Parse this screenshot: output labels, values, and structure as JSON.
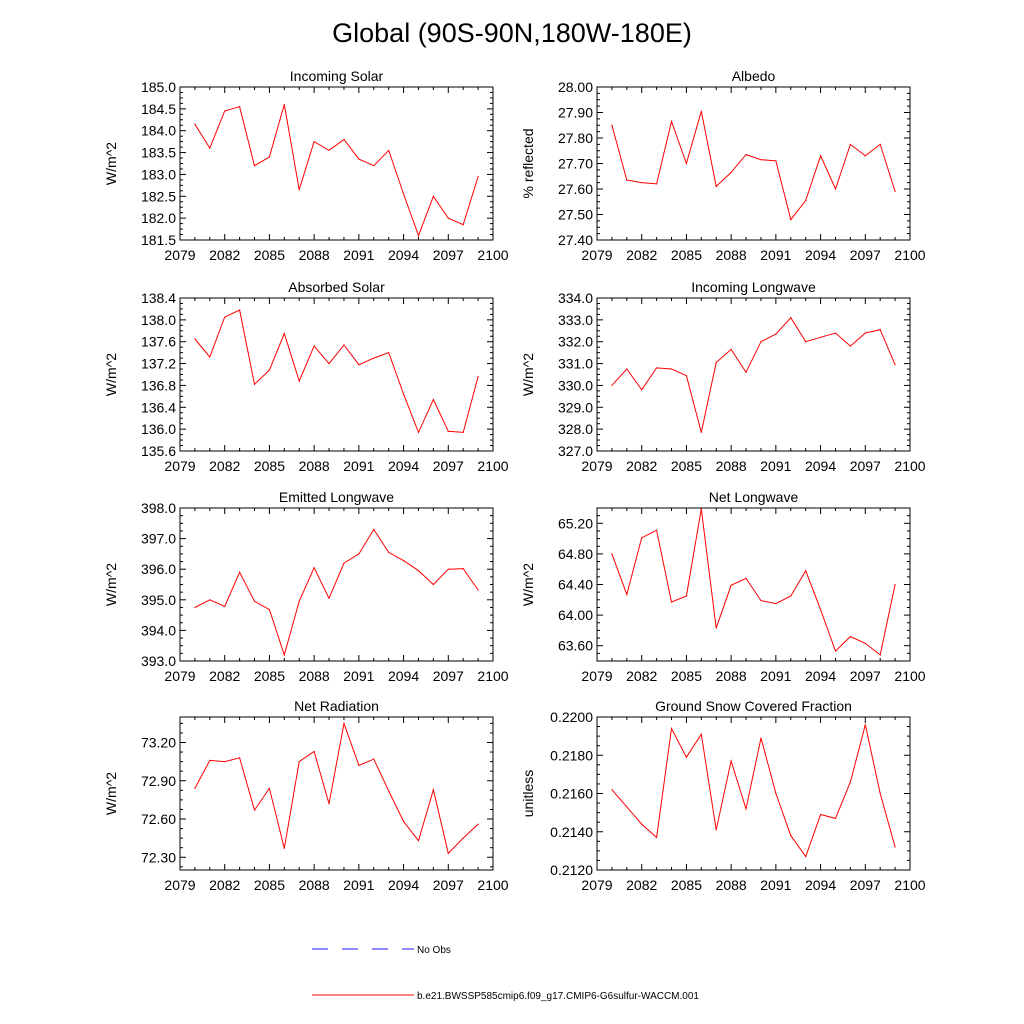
{
  "figure": {
    "title": "Global (90S-90N,180W-180E)"
  },
  "legend": {
    "obs_label": "No Obs",
    "obs_color": "#1a1aff",
    "model_label": "b.e21.BWSSP585cmip6.f09_g17.CMIP6-G6sulfur-WACCM.001",
    "model_color": "#ff0000"
  },
  "chart_data": [
    {
      "type": "line",
      "title": "Incoming Solar",
      "ylabel": "W/m^2",
      "xlim": [
        2079,
        2100
      ],
      "ylim": [
        181.5,
        185.0
      ],
      "xticks": [
        2079,
        2082,
        2085,
        2088,
        2091,
        2094,
        2097,
        2100
      ],
      "yticks": [
        "181.5",
        "182.0",
        "182.5",
        "183.0",
        "183.5",
        "184.0",
        "184.5",
        "185.0"
      ],
      "grid": false,
      "x": [
        2080,
        2081,
        2082,
        2083,
        2084,
        2085,
        2086,
        2087,
        2088,
        2089,
        2090,
        2091,
        2092,
        2093,
        2094,
        2095,
        2096,
        2097,
        2098,
        2099
      ],
      "series": [
        {
          "values": [
            184.15,
            183.6,
            184.45,
            184.55,
            183.2,
            183.4,
            184.6,
            182.65,
            183.75,
            183.55,
            183.8,
            183.35,
            183.2,
            183.55,
            182.55,
            181.6,
            182.5,
            182.0,
            181.85,
            182.95
          ]
        }
      ]
    },
    {
      "type": "line",
      "title": "Albedo",
      "ylabel": "% reflected",
      "xlim": [
        2079,
        2100
      ],
      "ylim": [
        27.4,
        28.0
      ],
      "xticks": [
        2079,
        2082,
        2085,
        2088,
        2091,
        2094,
        2097,
        2100
      ],
      "yticks": [
        "27.40",
        "27.50",
        "27.60",
        "27.70",
        "27.80",
        "27.90",
        "28.00"
      ],
      "grid": false,
      "x": [
        2080,
        2081,
        2082,
        2083,
        2084,
        2085,
        2086,
        2087,
        2088,
        2089,
        2090,
        2091,
        2092,
        2093,
        2094,
        2095,
        2096,
        2097,
        2098,
        2099
      ],
      "series": [
        {
          "values": [
            27.85,
            27.635,
            27.625,
            27.62,
            27.865,
            27.7,
            27.905,
            27.61,
            27.665,
            27.735,
            27.715,
            27.71,
            27.48,
            27.555,
            27.73,
            27.6,
            27.775,
            27.73,
            27.775,
            27.59
          ]
        }
      ]
    },
    {
      "type": "line",
      "title": "Absorbed Solar",
      "ylabel": "W/m^2",
      "xlim": [
        2079,
        2100
      ],
      "ylim": [
        135.6,
        138.4
      ],
      "xticks": [
        2079,
        2082,
        2085,
        2088,
        2091,
        2094,
        2097,
        2100
      ],
      "yticks": [
        "135.6",
        "136.0",
        "136.4",
        "136.8",
        "137.2",
        "137.6",
        "138.0",
        "138.4"
      ],
      "grid": false,
      "x": [
        2080,
        2081,
        2082,
        2083,
        2084,
        2085,
        2086,
        2087,
        2088,
        2089,
        2090,
        2091,
        2092,
        2093,
        2094,
        2095,
        2096,
        2097,
        2098,
        2099
      ],
      "series": [
        {
          "values": [
            137.65,
            137.32,
            138.05,
            138.18,
            136.82,
            137.08,
            137.75,
            136.88,
            137.52,
            137.2,
            137.54,
            137.18,
            137.3,
            137.4,
            136.64,
            135.94,
            136.54,
            135.96,
            135.94,
            136.96
          ]
        }
      ]
    },
    {
      "type": "line",
      "title": "Incoming Longwave",
      "ylabel": "W/m^2",
      "xlim": [
        2079,
        2100
      ],
      "ylim": [
        327.0,
        334.0
      ],
      "xticks": [
        2079,
        2082,
        2085,
        2088,
        2091,
        2094,
        2097,
        2100
      ],
      "yticks": [
        "327.0",
        "328.0",
        "329.0",
        "330.0",
        "331.0",
        "332.0",
        "333.0",
        "334.0"
      ],
      "grid": false,
      "x": [
        2080,
        2081,
        2082,
        2083,
        2084,
        2085,
        2086,
        2087,
        2088,
        2089,
        2090,
        2091,
        2092,
        2093,
        2094,
        2095,
        2096,
        2097,
        2098,
        2099
      ],
      "series": [
        {
          "values": [
            330.0,
            330.75,
            329.8,
            330.8,
            330.75,
            330.45,
            327.85,
            331.05,
            331.65,
            330.6,
            332.0,
            332.35,
            333.1,
            332.0,
            332.2,
            332.4,
            331.8,
            332.4,
            332.55,
            330.95
          ]
        }
      ]
    },
    {
      "type": "line",
      "title": "Emitted Longwave",
      "ylabel": "W/m^2",
      "xlim": [
        2079,
        2100
      ],
      "ylim": [
        393.0,
        398.0
      ],
      "xticks": [
        2079,
        2082,
        2085,
        2088,
        2091,
        2094,
        2097,
        2100
      ],
      "yticks": [
        "393.0",
        "394.0",
        "395.0",
        "396.0",
        "397.0",
        "398.0"
      ],
      "grid": false,
      "x": [
        2080,
        2081,
        2082,
        2083,
        2084,
        2085,
        2086,
        2087,
        2088,
        2089,
        2090,
        2091,
        2092,
        2093,
        2094,
        2095,
        2096,
        2097,
        2098,
        2099
      ],
      "series": [
        {
          "values": [
            394.75,
            395.0,
            394.78,
            395.9,
            394.95,
            394.68,
            393.2,
            394.95,
            396.05,
            395.05,
            396.2,
            396.5,
            397.3,
            396.55,
            396.28,
            395.95,
            395.5,
            396.0,
            396.02,
            395.32
          ]
        }
      ]
    },
    {
      "type": "line",
      "title": "Net Longwave",
      "ylabel": "W/m^2",
      "xlim": [
        2079,
        2100
      ],
      "ylim": [
        63.4,
        65.4
      ],
      "xticks": [
        2079,
        2082,
        2085,
        2088,
        2091,
        2094,
        2097,
        2100
      ],
      "yticks": [
        "63.60",
        "64.00",
        "64.40",
        "64.80",
        "65.20"
      ],
      "grid": false,
      "x": [
        2080,
        2081,
        2082,
        2083,
        2084,
        2085,
        2086,
        2087,
        2088,
        2089,
        2090,
        2091,
        2092,
        2093,
        2094,
        2095,
        2096,
        2097,
        2098,
        2099
      ],
      "series": [
        {
          "values": [
            64.8,
            64.27,
            65.01,
            65.11,
            64.17,
            64.25,
            65.39,
            63.83,
            64.39,
            64.48,
            64.19,
            64.15,
            64.25,
            64.58,
            64.07,
            63.53,
            63.72,
            63.63,
            63.48,
            64.4
          ]
        }
      ]
    },
    {
      "type": "line",
      "title": "Net Radiation",
      "ylabel": "W/m^2",
      "xlim": [
        2079,
        2100
      ],
      "ylim": [
        72.2,
        73.4
      ],
      "xticks": [
        2079,
        2082,
        2085,
        2088,
        2091,
        2094,
        2097,
        2100
      ],
      "yticks": [
        "72.30",
        "72.60",
        "72.90",
        "73.20"
      ],
      "grid": false,
      "x": [
        2080,
        2081,
        2082,
        2083,
        2084,
        2085,
        2086,
        2087,
        2088,
        2089,
        2090,
        2091,
        2092,
        2093,
        2094,
        2095,
        2096,
        2097,
        2098,
        2099
      ],
      "series": [
        {
          "values": [
            72.84,
            73.06,
            73.05,
            73.08,
            72.67,
            72.84,
            72.37,
            73.05,
            73.13,
            72.72,
            73.35,
            73.02,
            73.07,
            72.82,
            72.58,
            72.43,
            72.83,
            72.33,
            72.45,
            72.56
          ]
        }
      ]
    },
    {
      "type": "line",
      "title": "Ground Snow Covered Fraction",
      "ylabel": "unitless",
      "xlim": [
        2079,
        2100
      ],
      "ylim": [
        0.212,
        0.22
      ],
      "xticks": [
        2079,
        2082,
        2085,
        2088,
        2091,
        2094,
        2097,
        2100
      ],
      "yticks": [
        "0.2120",
        "0.2140",
        "0.2160",
        "0.2180",
        "0.2200"
      ],
      "grid": false,
      "x": [
        2080,
        2081,
        2082,
        2083,
        2084,
        2085,
        2086,
        2087,
        2088,
        2089,
        2090,
        2091,
        2092,
        2093,
        2094,
        2095,
        2096,
        2097,
        2098,
        2099
      ],
      "series": [
        {
          "values": [
            0.2162,
            0.2153,
            0.2144,
            0.2137,
            0.2194,
            0.2179,
            0.2191,
            0.2141,
            0.2177,
            0.2152,
            0.2189,
            0.216,
            0.2138,
            0.2127,
            0.2149,
            0.2147,
            0.2166,
            0.2196,
            0.216,
            0.2132
          ]
        }
      ]
    }
  ]
}
